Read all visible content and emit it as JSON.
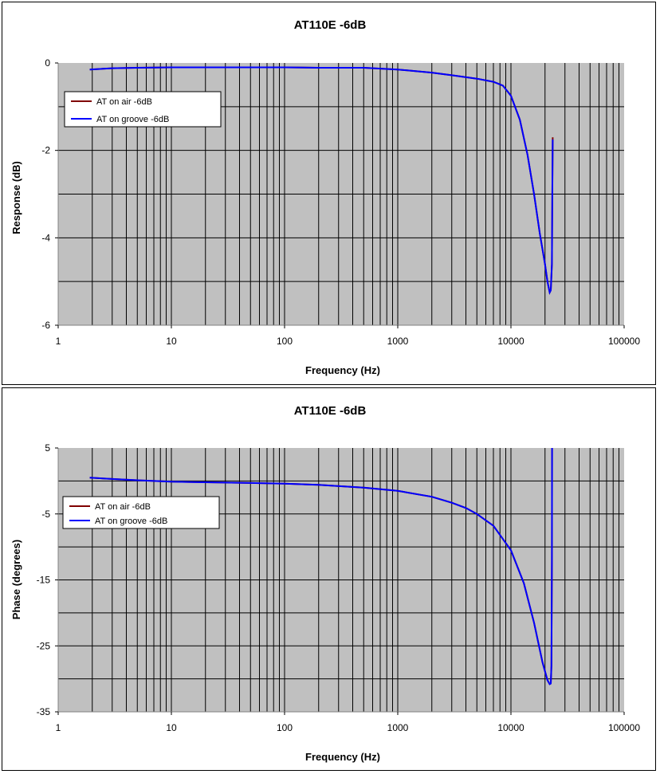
{
  "chart_data": [
    {
      "type": "line",
      "title": "AT110E -6dB",
      "xlabel": "Frequency (Hz)",
      "ylabel": "Response (dB)",
      "xscale": "log",
      "xlim": [
        1,
        100000
      ],
      "ylim": [
        -6,
        0
      ],
      "xticks": [
        "1",
        "10",
        "100",
        "1000",
        "10000",
        "100000"
      ],
      "yticks": [
        "0",
        "-2",
        "-4",
        "-6"
      ],
      "grid": true,
      "legend_position": "top-left",
      "series": [
        {
          "name": "AT on air -6dB",
          "color": "#800000",
          "x": [
            1.9,
            3,
            5,
            10,
            20,
            50,
            100,
            200,
            500,
            1000,
            2000,
            3000,
            5000,
            7000,
            8500,
            10000,
            12000,
            14000,
            16000,
            18000,
            20000,
            21000,
            22000,
            22500,
            23000,
            23200,
            23400
          ],
          "y": [
            -0.15,
            -0.12,
            -0.11,
            -0.1,
            -0.1,
            -0.1,
            -0.1,
            -0.11,
            -0.11,
            -0.15,
            -0.22,
            -0.28,
            -0.36,
            -0.43,
            -0.52,
            -0.75,
            -1.3,
            -2.1,
            -3.0,
            -3.9,
            -4.6,
            -5.0,
            -5.25,
            -5.2,
            -4.6,
            -3.0,
            -1.7
          ]
        },
        {
          "name": "AT on groove -6dB",
          "color": "#0000ff",
          "x": [
            1.9,
            3,
            5,
            10,
            20,
            50,
            100,
            200,
            500,
            1000,
            2000,
            3000,
            5000,
            7000,
            8500,
            10000,
            12000,
            14000,
            16000,
            18000,
            20000,
            21000,
            22000,
            22500,
            23000,
            23200,
            23400
          ],
          "y": [
            -0.15,
            -0.12,
            -0.11,
            -0.1,
            -0.1,
            -0.1,
            -0.1,
            -0.11,
            -0.11,
            -0.15,
            -0.22,
            -0.28,
            -0.36,
            -0.43,
            -0.52,
            -0.75,
            -1.3,
            -2.1,
            -3.0,
            -3.9,
            -4.6,
            -5.0,
            -5.25,
            -5.2,
            -4.6,
            -3.0,
            -1.75
          ]
        }
      ]
    },
    {
      "type": "line",
      "title": "AT110E -6dB",
      "xlabel": "Frequency (Hz)",
      "ylabel": "Phase (degrees)",
      "xscale": "log",
      "xlim": [
        1,
        100000
      ],
      "ylim": [
        -35,
        5
      ],
      "xticks": [
        "1",
        "10",
        "100",
        "1000",
        "10000",
        "100000"
      ],
      "yticks": [
        "5",
        "-5",
        "-15",
        "-25",
        "-35"
      ],
      "grid": true,
      "legend_position": "top-left",
      "series": [
        {
          "name": "AT on air -6dB",
          "color": "#800000",
          "x": [
            1.9,
            3,
            5,
            10,
            20,
            50,
            100,
            200,
            500,
            1000,
            2000,
            3000,
            4000,
            5000,
            7000,
            10000,
            13000,
            16000,
            19000,
            21000,
            22000,
            22500,
            22800,
            23000,
            23100
          ],
          "y": [
            0.5,
            0.3,
            0.1,
            -0.1,
            -0.2,
            -0.3,
            -0.4,
            -0.6,
            -1.0,
            -1.5,
            -2.4,
            -3.3,
            -4.1,
            -5.0,
            -6.8,
            -10.5,
            -15.5,
            -21.5,
            -27.5,
            -30.2,
            -30.8,
            -30.7,
            -28.0,
            -12.0,
            5.0
          ]
        },
        {
          "name": "AT on groove -6dB",
          "color": "#0000ff",
          "x": [
            1.9,
            3,
            5,
            10,
            20,
            50,
            100,
            200,
            500,
            1000,
            2000,
            3000,
            4000,
            5000,
            7000,
            10000,
            13000,
            16000,
            19000,
            21000,
            22000,
            22500,
            22800,
            23000,
            23100
          ],
          "y": [
            0.5,
            0.3,
            0.1,
            -0.1,
            -0.2,
            -0.3,
            -0.4,
            -0.6,
            -1.0,
            -1.5,
            -2.4,
            -3.3,
            -4.1,
            -5.0,
            -6.8,
            -10.5,
            -15.5,
            -21.5,
            -27.5,
            -30.2,
            -30.8,
            -30.7,
            -28.0,
            -12.0,
            5.0
          ]
        }
      ]
    }
  ]
}
